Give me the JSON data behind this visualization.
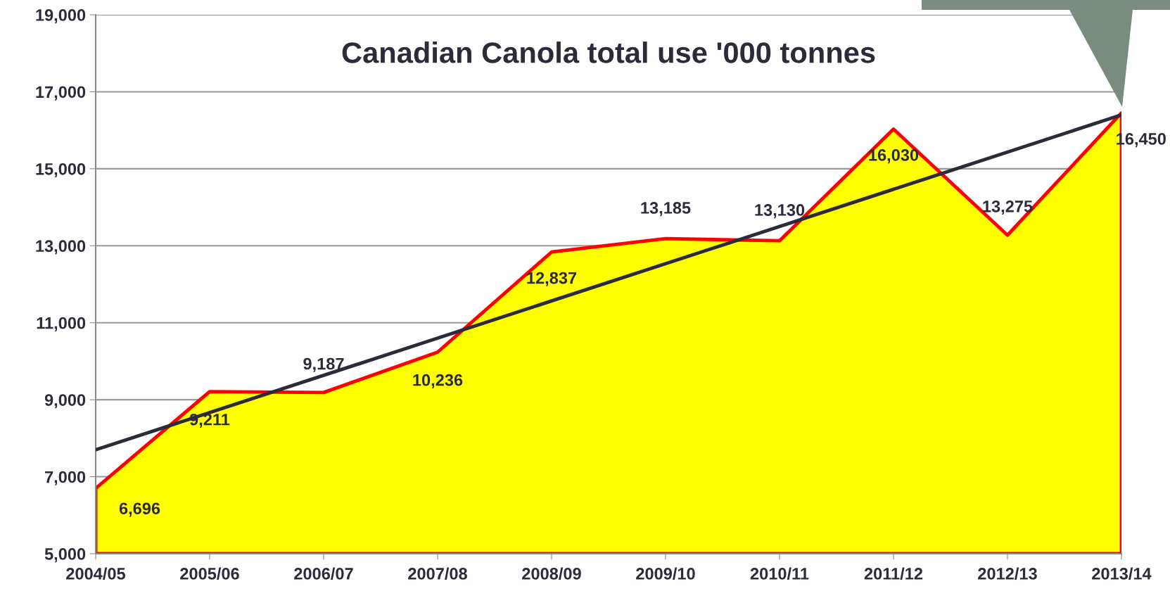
{
  "chart_data": {
    "type": "area",
    "title": "Canadian Canola total use '000 tonnes",
    "categories": [
      "2004/05",
      "2005/06",
      "2006/07",
      "2007/08",
      "2008/09",
      "2009/10",
      "2010/11",
      "2011/12",
      "2012/13",
      "2013/14"
    ],
    "series": [
      {
        "color": "#ffff00",
        "values": [
          6696,
          9211,
          9187,
          10236,
          12837,
          13185,
          13130,
          16030,
          13275,
          16450
        ],
        "value_labels": [
          "6,696",
          "9,211",
          "9,187",
          "10,236",
          "12,837",
          "13,185",
          "13,130",
          "16,030",
          "13,275",
          "16,450"
        ]
      },
      {
        "type": "line",
        "color": "#2b2b3a",
        "x": [
          "2004/05",
          "2013/14"
        ],
        "values": [
          7700,
          16400
        ]
      }
    ],
    "ylim": [
      5000,
      19000
    ],
    "yticks": [
      {
        "value": 5000,
        "label": "5,000"
      },
      {
        "value": 7000,
        "label": "7,000"
      },
      {
        "value": 9000,
        "label": "9,000"
      },
      {
        "value": 11000,
        "label": "11,000"
      },
      {
        "value": 13000,
        "label": "13,000"
      },
      {
        "value": 15000,
        "label": "15,000"
      },
      {
        "value": 17000,
        "label": "17,000"
      },
      {
        "value": 19000,
        "label": "19,000"
      }
    ],
    "grid": "y",
    "marker": "none"
  }
}
